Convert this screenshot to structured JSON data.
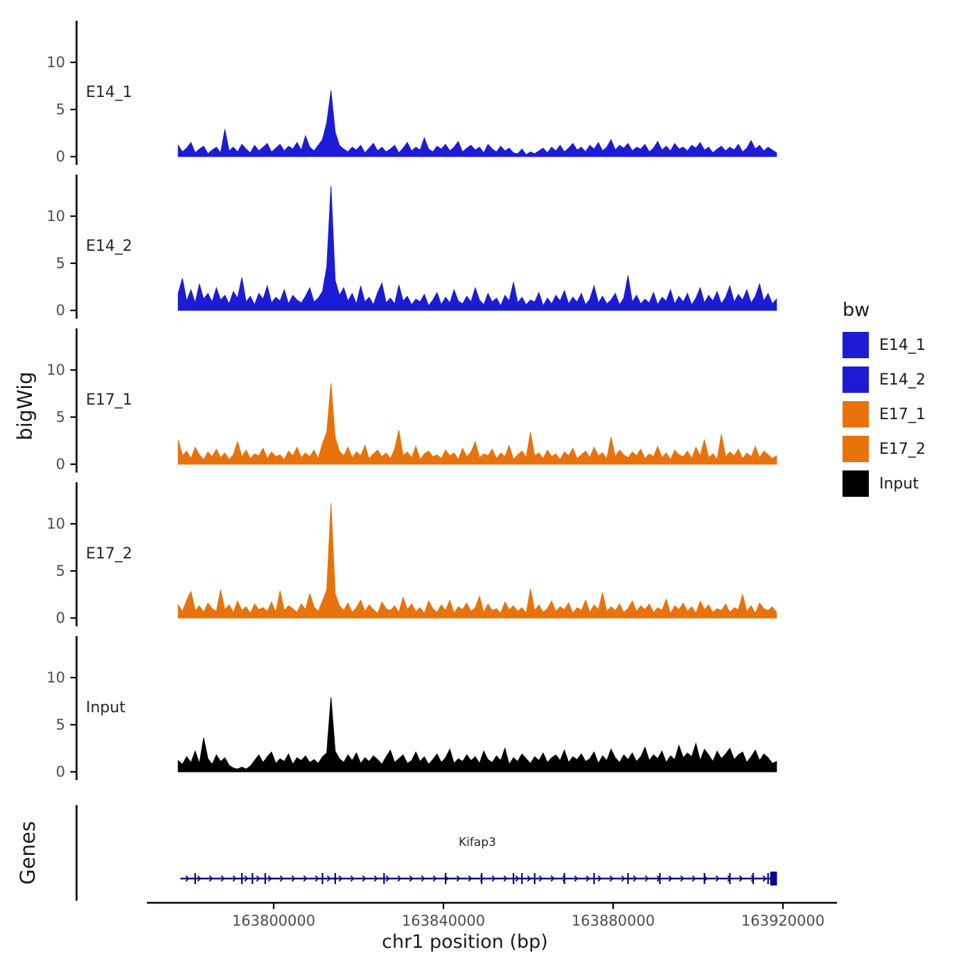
{
  "figure": {
    "y_axis_group_label": "bigWig",
    "genes_group_label": "Genes",
    "x_axis_title": "chr1 position (bp)"
  },
  "legend": {
    "title": "bw",
    "items": [
      {
        "label": "E14_1",
        "color": "#1C1CD6"
      },
      {
        "label": "E14_2",
        "color": "#1C1CD6"
      },
      {
        "label": "E17_1",
        "color": "#E8730C"
      },
      {
        "label": "E17_2",
        "color": "#E8730C"
      },
      {
        "label": "Input",
        "color": "#000000"
      }
    ]
  },
  "chart_data": {
    "type": "area",
    "title": "",
    "xlabel": "chr1 position (bp)",
    "ylabel": "bigWig",
    "legend_position": "right",
    "grid": false,
    "x_start": 163777500,
    "x_step": 1000,
    "x_axis": {
      "chrom": "chr1",
      "unit": "bp",
      "ticks": [
        163800000,
        163840000,
        163880000,
        163920000
      ],
      "range": [
        163770000,
        163925000
      ]
    },
    "y_axis": {
      "ticks": [
        0,
        5,
        10
      ],
      "range": [
        0,
        14
      ]
    },
    "series": [
      {
        "name": "E14_1",
        "color": "#1C1CD6",
        "values": [
          1.2,
          0.5,
          0.9,
          1.5,
          0.4,
          0.8,
          1.1,
          0.3,
          0.7,
          1.0,
          0.4,
          2.9,
          0.6,
          1.0,
          0.5,
          1.3,
          0.8,
          0.4,
          1.2,
          0.6,
          1.0,
          1.4,
          0.5,
          0.9,
          1.3,
          0.6,
          1.1,
          0.8,
          1.5,
          0.7,
          2.2,
          1.0,
          0.6,
          1.2,
          1.8,
          3.6,
          7.0,
          2.6,
          1.2,
          0.8,
          0.5,
          1.0,
          0.7,
          1.2,
          0.4,
          0.9,
          1.4,
          0.6,
          1.0,
          0.5,
          0.8,
          1.2,
          0.4,
          0.9,
          1.5,
          0.6,
          1.0,
          0.7,
          2.0,
          0.8,
          0.5,
          1.1,
          0.8,
          1.3,
          0.6,
          1.0,
          1.6,
          0.5,
          0.9,
          1.2,
          0.7,
          1.0,
          0.4,
          1.3,
          0.8,
          0.5,
          1.1,
          0.6,
          0.9,
          0.4,
          0.3,
          0.8,
          0.2,
          0.5,
          0.3,
          0.6,
          0.9,
          0.4,
          1.0,
          0.6,
          1.2,
          0.5,
          0.9,
          1.4,
          0.7,
          1.0,
          0.5,
          1.2,
          0.8,
          1.5,
          0.6,
          1.0,
          1.8,
          0.7,
          1.2,
          0.9,
          1.4,
          0.6,
          1.0,
          0.8,
          1.3,
          0.5,
          0.9,
          1.6,
          0.7,
          1.1,
          0.6,
          1.4,
          0.8,
          1.0,
          0.6,
          1.2,
          0.9,
          1.5,
          0.7,
          1.0,
          0.4,
          0.8,
          1.1,
          0.6,
          1.0,
          0.7,
          1.3,
          0.5,
          0.9,
          1.7,
          0.8,
          1.2,
          0.6,
          1.0,
          0.7,
          0.4
        ]
      },
      {
        "name": "E14_2",
        "color": "#1C1CD6",
        "values": [
          1.8,
          3.4,
          1.0,
          2.2,
          0.8,
          2.8,
          1.2,
          1.8,
          0.9,
          2.4,
          1.1,
          1.6,
          0.7,
          2.0,
          1.3,
          3.5,
          0.9,
          1.5,
          0.6,
          1.8,
          1.2,
          2.6,
          0.8,
          1.4,
          1.0,
          2.2,
          0.7,
          1.6,
          1.1,
          0.8,
          1.5,
          2.4,
          0.9,
          1.3,
          2.0,
          4.6,
          13.2,
          3.2,
          1.6,
          2.4,
          1.0,
          1.8,
          0.7,
          2.6,
          0.9,
          1.4,
          0.6,
          1.9,
          2.9,
          0.8,
          1.3,
          0.7,
          2.7,
          1.0,
          1.5,
          0.6,
          1.2,
          0.9,
          1.7,
          0.5,
          1.1,
          1.9,
          0.6,
          1.4,
          0.8,
          2.2,
          1.0,
          0.7,
          1.5,
          0.9,
          2.4,
          1.1,
          0.6,
          1.8,
          0.9,
          1.3,
          0.5,
          1.6,
          1.0,
          3.0,
          0.8,
          1.4,
          0.6,
          1.1,
          0.9,
          1.9,
          0.5,
          1.3,
          0.7,
          1.6,
          1.0,
          2.1,
          0.7,
          1.4,
          0.9,
          1.8,
          0.6,
          1.2,
          2.6,
          0.8,
          1.5,
          0.7,
          1.1,
          1.8,
          0.6,
          1.3,
          3.7,
          0.9,
          1.6,
          0.7,
          1.2,
          0.8,
          1.9,
          0.6,
          1.4,
          1.0,
          2.2,
          0.7,
          1.5,
          0.9,
          1.8,
          0.6,
          1.3,
          2.4,
          0.8,
          1.6,
          1.0,
          2.0,
          0.7,
          1.4,
          2.6,
          0.9,
          1.7,
          1.1,
          2.2,
          0.8,
          1.5,
          2.8,
          1.0,
          1.8,
          0.7,
          1.2
        ]
      },
      {
        "name": "E17_1",
        "color": "#E8730C",
        "values": [
          2.6,
          0.9,
          1.4,
          0.6,
          1.8,
          1.0,
          0.5,
          1.3,
          0.8,
          1.6,
          0.7,
          1.2,
          0.5,
          1.0,
          2.4,
          0.8,
          1.5,
          0.6,
          1.1,
          0.9,
          1.7,
          0.6,
          1.3,
          0.8,
          1.0,
          0.5,
          1.4,
          0.9,
          1.8,
          0.7,
          1.2,
          0.8,
          1.5,
          0.6,
          2.2,
          3.4,
          8.6,
          2.8,
          1.4,
          0.9,
          1.8,
          0.7,
          1.3,
          0.9,
          2.0,
          0.6,
          1.1,
          1.5,
          0.8,
          1.2,
          0.6,
          1.6,
          3.6,
          0.9,
          1.3,
          0.7,
          1.9,
          0.5,
          1.1,
          1.4,
          0.8,
          1.0,
          0.6,
          1.5,
          0.9,
          1.2,
          0.5,
          1.7,
          0.8,
          1.3,
          2.4,
          0.7,
          1.1,
          0.9,
          1.6,
          0.6,
          1.2,
          0.8,
          2.0,
          0.5,
          1.0,
          1.4,
          0.7,
          3.4,
          0.9,
          1.2,
          0.6,
          1.5,
          0.8,
          1.1,
          0.5,
          1.3,
          0.9,
          1.7,
          0.6,
          1.0,
          1.4,
          0.7,
          1.8,
          0.9,
          1.2,
          0.6,
          2.9,
          0.8,
          1.5,
          1.0,
          0.7,
          1.3,
          0.9,
          1.6,
          0.6,
          1.1,
          0.8,
          1.9,
          0.7,
          1.2,
          0.5,
          1.5,
          1.0,
          0.8,
          1.4,
          0.6,
          1.8,
          0.9,
          2.6,
          0.7,
          1.1,
          0.5,
          3.2,
          0.8,
          1.3,
          0.9,
          1.6,
          0.6,
          1.2,
          0.8,
          1.9,
          0.7,
          1.4,
          1.0,
          0.6,
          0.9
        ]
      },
      {
        "name": "E17_2",
        "color": "#E8730C",
        "values": [
          1.4,
          0.7,
          1.9,
          2.8,
          0.8,
          1.3,
          0.6,
          1.6,
          1.0,
          0.7,
          3.0,
          0.9,
          1.4,
          0.6,
          1.8,
          0.8,
          1.2,
          0.5,
          1.5,
          0.9,
          1.1,
          0.7,
          1.7,
          0.6,
          2.9,
          0.8,
          1.3,
          1.0,
          0.6,
          1.5,
          0.9,
          2.6,
          1.2,
          0.7,
          1.8,
          3.0,
          12.2,
          2.6,
          1.3,
          0.8,
          1.6,
          0.6,
          1.1,
          1.9,
          0.7,
          1.4,
          0.9,
          0.5,
          1.7,
          1.0,
          0.8,
          1.3,
          0.6,
          2.2,
          0.9,
          1.5,
          0.7,
          1.1,
          0.5,
          1.8,
          1.0,
          0.6,
          1.4,
          0.8,
          1.9,
          0.5,
          1.2,
          0.9,
          1.6,
          0.7,
          1.1,
          2.3,
          0.6,
          1.5,
          0.8,
          1.0,
          0.5,
          1.7,
          0.9,
          1.3,
          0.7,
          1.1,
          0.5,
          3.1,
          0.8,
          1.4,
          0.6,
          1.0,
          1.8,
          0.7,
          1.2,
          0.9,
          1.6,
          0.5,
          1.1,
          0.8,
          1.9,
          0.6,
          1.4,
          0.9,
          2.7,
          0.7,
          1.2,
          0.8,
          1.5,
          0.6,
          1.0,
          1.8,
          0.7,
          1.3,
          0.9,
          1.5,
          0.6,
          1.1,
          0.8,
          2.0,
          0.5,
          1.3,
          0.9,
          1.6,
          0.7,
          1.2,
          0.5,
          1.8,
          0.9,
          1.4,
          0.6,
          1.0,
          0.8,
          1.5,
          0.6,
          1.1,
          0.9,
          2.5,
          0.7,
          1.3,
          0.5,
          1.6,
          1.0,
          0.8,
          1.2,
          0.6
        ]
      },
      {
        "name": "Input",
        "color": "#000000",
        "values": [
          1.2,
          0.8,
          1.6,
          1.0,
          2.2,
          0.9,
          3.6,
          1.4,
          0.8,
          1.8,
          1.1,
          1.5,
          0.7,
          0.4,
          0.3,
          0.5,
          0.3,
          0.6,
          1.2,
          1.8,
          1.0,
          1.6,
          2.1,
          0.9,
          1.4,
          1.1,
          1.9,
          0.8,
          1.5,
          1.2,
          1.7,
          1.0,
          1.3,
          0.9,
          1.6,
          2.0,
          7.9,
          2.2,
          1.4,
          1.0,
          1.8,
          1.2,
          2.0,
          0.9,
          1.5,
          1.1,
          1.7,
          1.3,
          0.8,
          1.6,
          2.3,
          1.0,
          1.4,
          1.8,
          0.9,
          1.2,
          2.1,
          1.1,
          1.6,
          0.8,
          1.3,
          1.9,
          1.0,
          1.5,
          2.4,
          0.9,
          1.4,
          1.1,
          1.8,
          1.2,
          1.6,
          0.9,
          2.2,
          1.3,
          1.0,
          1.7,
          1.2,
          2.5,
          0.8,
          1.5,
          1.1,
          1.9,
          1.4,
          0.9,
          1.6,
          1.2,
          2.0,
          1.0,
          1.5,
          1.8,
          1.2,
          2.3,
          1.0,
          1.6,
          1.3,
          1.9,
          1.1,
          1.4,
          2.1,
          0.9,
          1.7,
          1.2,
          2.4,
          1.5,
          1.0,
          1.8,
          1.3,
          2.0,
          1.1,
          1.6,
          2.6,
          1.2,
          1.8,
          1.4,
          2.2,
          1.0,
          1.7,
          1.3,
          2.8,
          1.5,
          2.0,
          1.6,
          3.0,
          1.2,
          2.4,
          1.8,
          1.1,
          2.2,
          1.4,
          1.9,
          2.5,
          1.3,
          1.8,
          2.1,
          1.0,
          1.6,
          2.3,
          1.2,
          1.9,
          1.5,
          0.9,
          1.1
        ]
      }
    ],
    "gene_track": {
      "label": "Genes",
      "gene_name": "Kifap3",
      "strand": "+",
      "color": "#00008B",
      "start": 163778000,
      "end": 163918500,
      "thick_block": {
        "start": 163917000,
        "end": 163918600
      },
      "exons": [
        163781500,
        163792500,
        163795000,
        163798000,
        163811500,
        163814500,
        163826000,
        163840500,
        163849000,
        163856500,
        163858500,
        163861500,
        163868500,
        163875500,
        163883500,
        163891000,
        163901500,
        163907500,
        163913000,
        163916500
      ]
    }
  }
}
